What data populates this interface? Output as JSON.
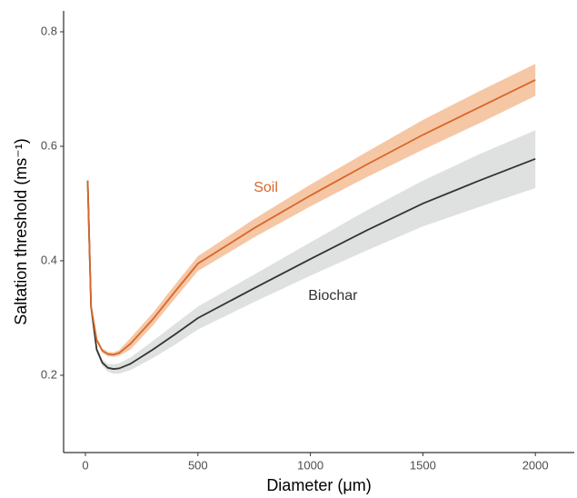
{
  "chart_data": {
    "type": "line",
    "x_label": "Diameter (μm)",
    "y_label": "Saltation threshold (ms⁻¹)",
    "x": [
      10,
      25,
      50,
      75,
      100,
      125,
      150,
      200,
      300,
      400,
      500,
      750,
      1000,
      1250,
      1500,
      1750,
      2000
    ],
    "series": [
      {
        "name": "Biochar",
        "color": "#333333",
        "band_color": "#dfe0e0",
        "values": [
          0.54,
          0.32,
          0.245,
          0.222,
          0.213,
          0.211,
          0.212,
          0.22,
          0.245,
          0.272,
          0.3,
          0.352,
          0.403,
          0.453,
          0.5,
          0.54,
          0.578
        ],
        "lower": [
          0.535,
          0.315,
          0.24,
          0.216,
          0.206,
          0.203,
          0.203,
          0.209,
          0.23,
          0.254,
          0.28,
          0.328,
          0.374,
          0.418,
          0.46,
          0.494,
          0.527
        ],
        "upper": [
          0.545,
          0.325,
          0.25,
          0.228,
          0.22,
          0.219,
          0.221,
          0.231,
          0.26,
          0.29,
          0.32,
          0.376,
          0.432,
          0.488,
          0.54,
          0.586,
          0.628
        ],
        "label_x": 1100,
        "label_y": 0.338
      },
      {
        "name": "Soil",
        "color": "#d9662a",
        "band_color": "#f5c7a5",
        "values": [
          0.54,
          0.32,
          0.262,
          0.243,
          0.237,
          0.236,
          0.239,
          0.255,
          0.298,
          0.347,
          0.395,
          0.457,
          0.514,
          0.568,
          0.62,
          0.668,
          0.716
        ],
        "lower": [
          0.535,
          0.316,
          0.258,
          0.239,
          0.233,
          0.232,
          0.234,
          0.245,
          0.287,
          0.335,
          0.382,
          0.441,
          0.495,
          0.546,
          0.594,
          0.64,
          0.688
        ],
        "upper": [
          0.545,
          0.324,
          0.266,
          0.247,
          0.241,
          0.24,
          0.244,
          0.265,
          0.309,
          0.359,
          0.408,
          0.473,
          0.533,
          0.59,
          0.646,
          0.696,
          0.744
        ],
        "label_x": 802,
        "label_y": 0.527
      }
    ],
    "xlim": [
      -97,
      2173
    ],
    "ylim": [
      0.065,
      0.8365
    ],
    "xticks": [
      0,
      500,
      1000,
      1500,
      2000
    ],
    "yticks": [
      0.2,
      0.4,
      0.6,
      0.8
    ]
  }
}
